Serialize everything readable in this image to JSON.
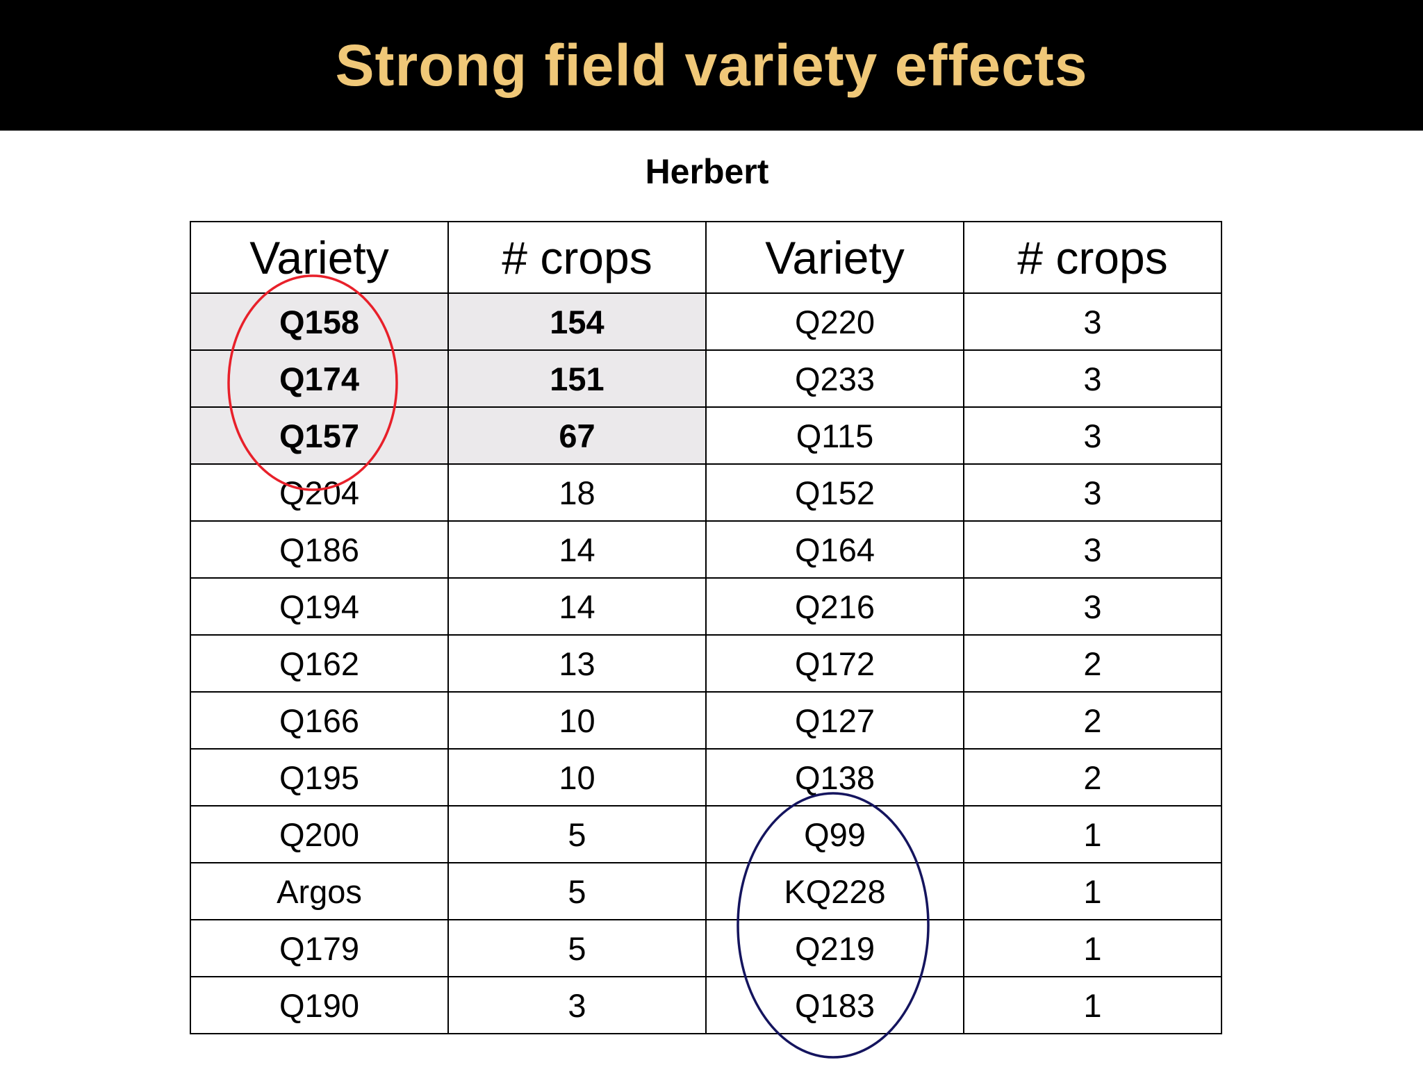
{
  "title": "Strong field variety effects",
  "subtitle": "Herbert",
  "headers": [
    "Variety",
    "# crops",
    "Variety",
    "# crops"
  ],
  "rows": [
    [
      "Q158",
      "154",
      "Q220",
      "3"
    ],
    [
      "Q174",
      "151",
      "Q233",
      "3"
    ],
    [
      "Q157",
      "67",
      "Q115",
      "3"
    ],
    [
      "Q204",
      "18",
      "Q152",
      "3"
    ],
    [
      "Q186",
      "14",
      "Q164",
      "3"
    ],
    [
      "Q194",
      "14",
      "Q216",
      "3"
    ],
    [
      "Q162",
      "13",
      "Q172",
      "2"
    ],
    [
      "Q166",
      "10",
      "Q127",
      "2"
    ],
    [
      "Q195",
      "10",
      "Q138",
      "2"
    ],
    [
      "Q200",
      "5",
      "Q99",
      "1"
    ],
    [
      "Argos",
      "5",
      "KQ228",
      "1"
    ],
    [
      "Q179",
      "5",
      "Q219",
      "1"
    ],
    [
      "Q190",
      "3",
      "Q183",
      "1"
    ]
  ],
  "colors": {
    "title": "#f0c878",
    "highlight_text": "#8b0a3c",
    "highlight_bg": "#ebe9eb",
    "red_circle": "#e8202a",
    "blue_circle": "#14145e"
  }
}
